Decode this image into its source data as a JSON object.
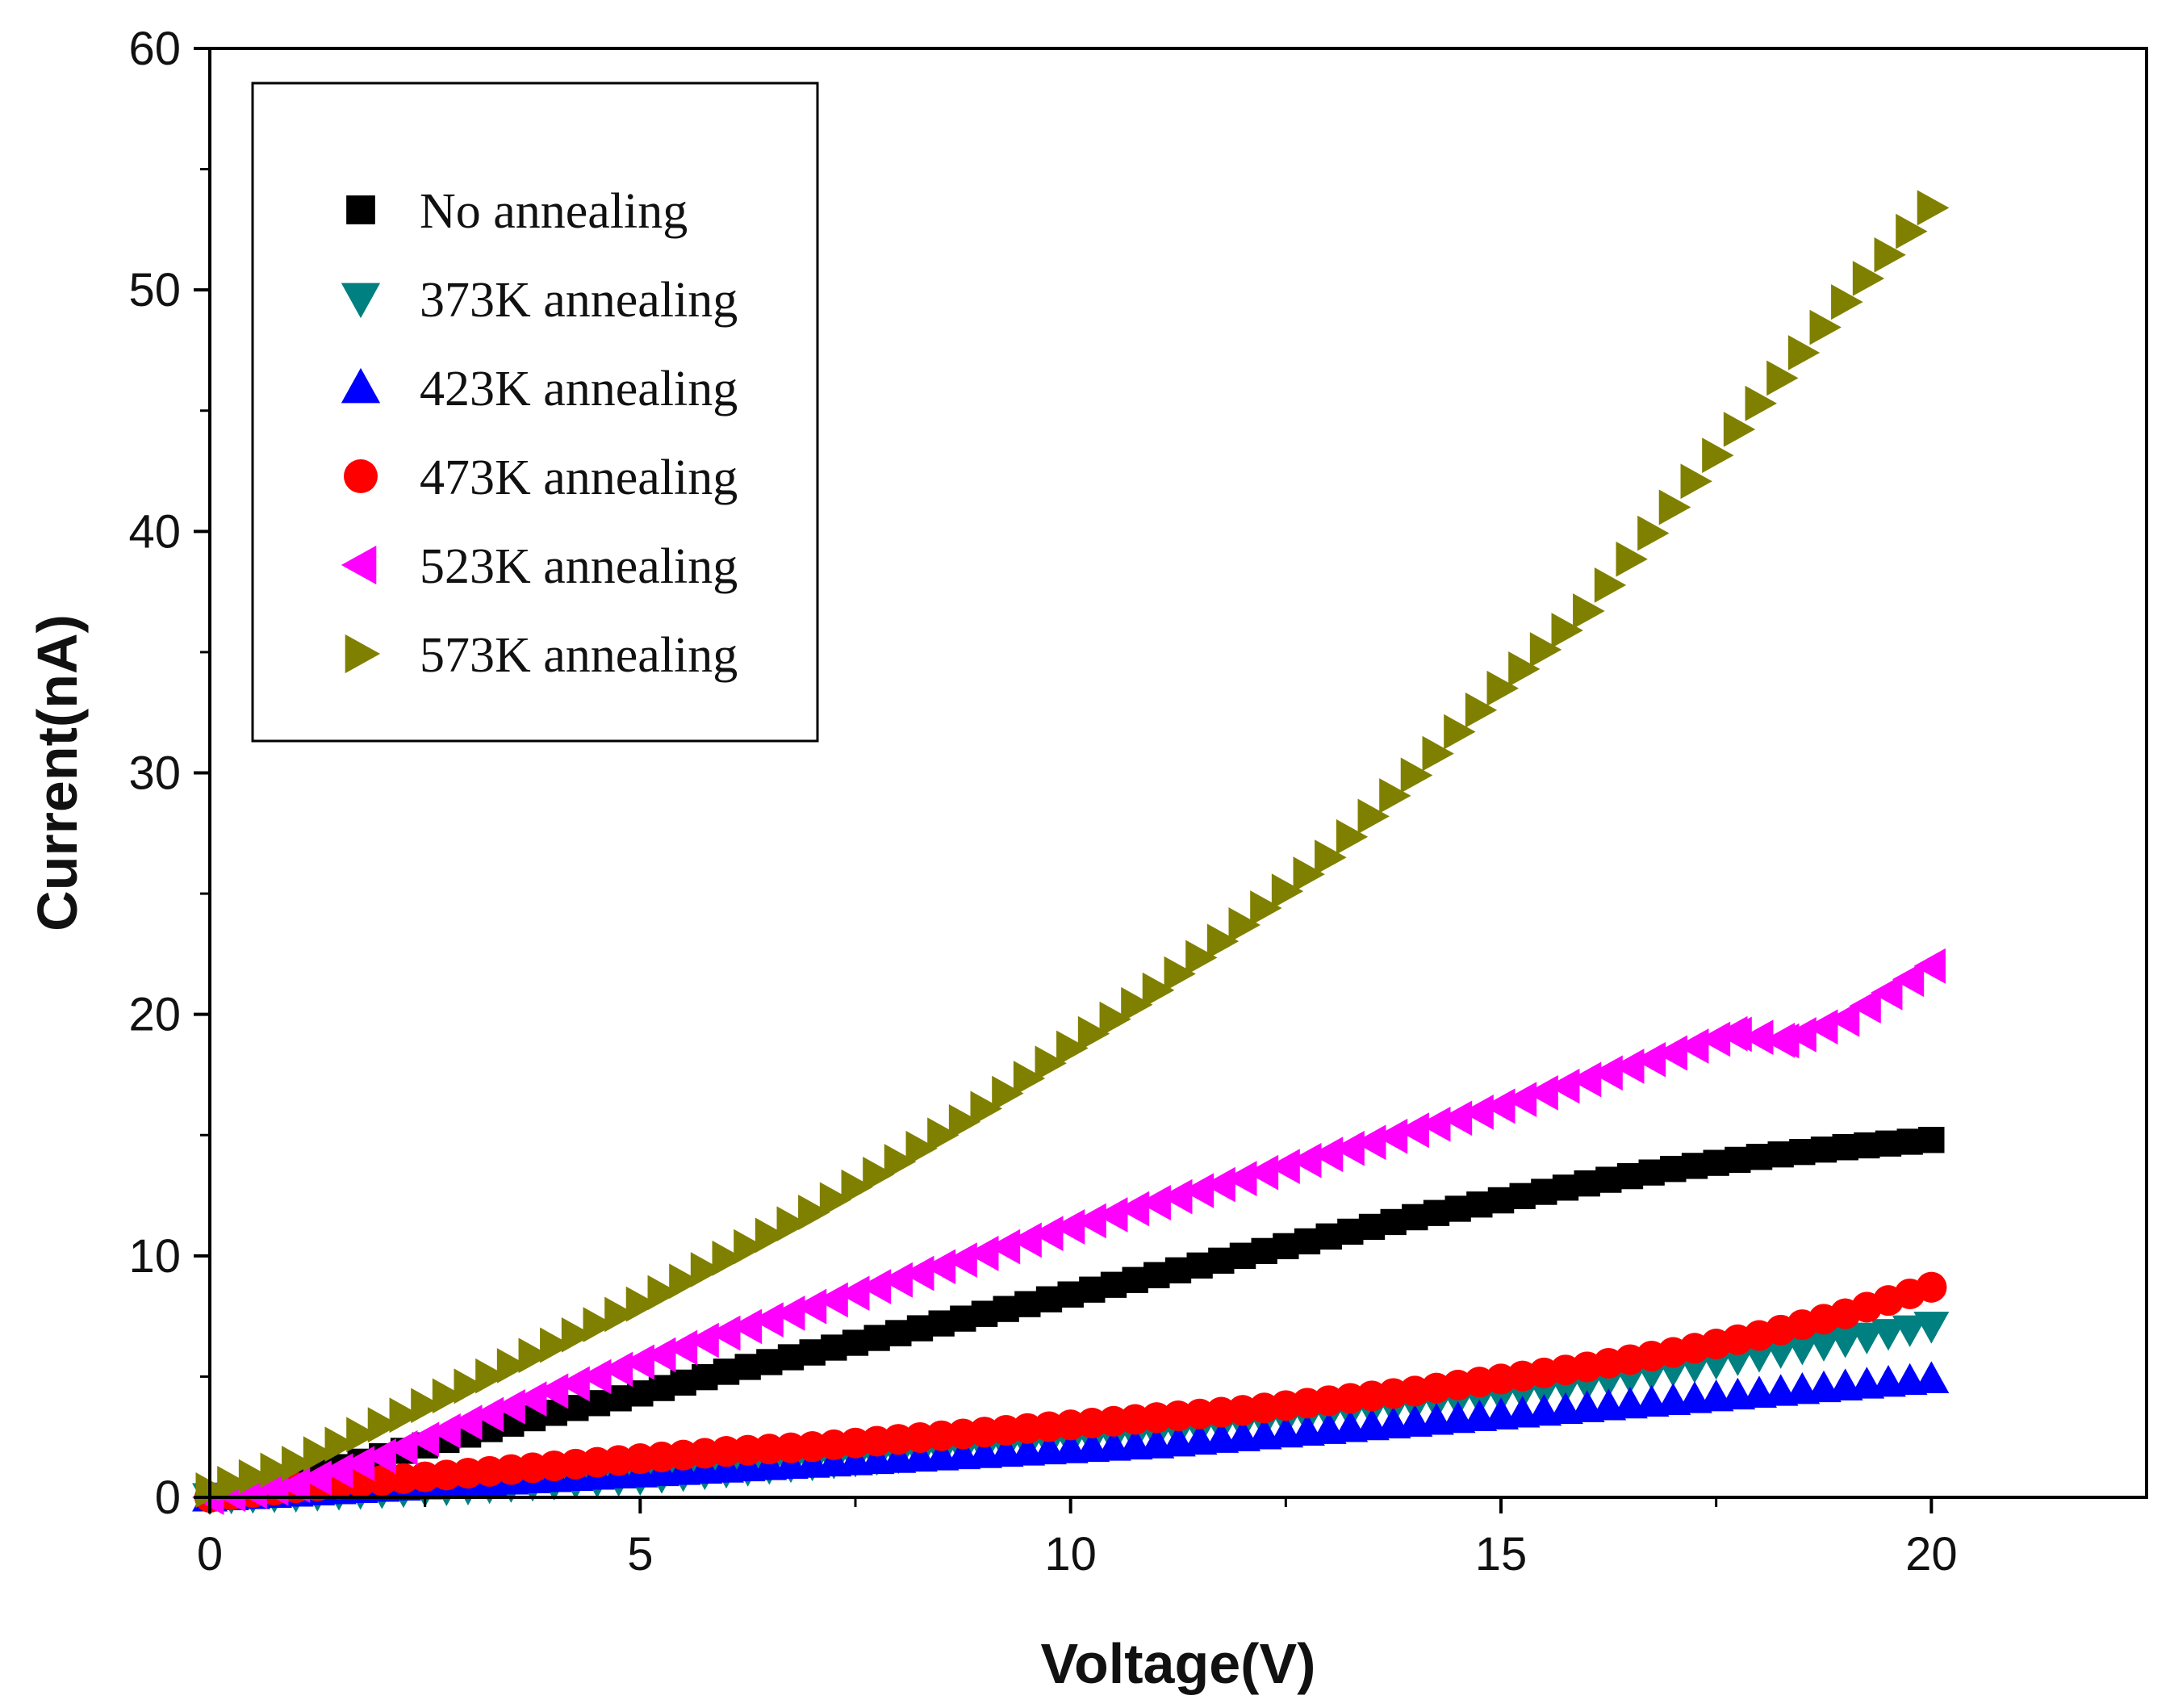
{
  "chart_data": {
    "type": "scatter",
    "title": "",
    "xlabel": "Voltage(V)",
    "ylabel": "Current(nA)",
    "xlim": [
      0,
      22.5
    ],
    "ylim": [
      0,
      60
    ],
    "xticks": [
      0,
      5,
      10,
      15,
      20
    ],
    "yticks": [
      0,
      10,
      20,
      30,
      40,
      50,
      60
    ],
    "legend_position": "top-left",
    "grid": false,
    "series": [
      {
        "name": "No annealing",
        "marker": "square",
        "color": "#000000",
        "x": [
          0,
          1,
          2,
          3,
          4,
          5,
          6,
          7,
          8,
          9,
          10,
          11,
          12,
          13,
          14,
          15,
          16,
          17,
          18,
          19,
          20
        ],
        "y": [
          0,
          0.8,
          1.7,
          2.6,
          3.5,
          4.3,
          5.2,
          6.0,
          6.8,
          7.6,
          8.4,
          9.2,
          10.0,
          10.8,
          11.6,
          12.3,
          13.0,
          13.6,
          14.1,
          14.5,
          14.8
        ]
      },
      {
        "name": "373K annealing",
        "marker": "triangle-down",
        "color": "#008080",
        "x": [
          0,
          1,
          2,
          3,
          4,
          5,
          6,
          7,
          8,
          9,
          10,
          11,
          12,
          13,
          14,
          15,
          16,
          17,
          18,
          19,
          20
        ],
        "y": [
          0,
          0.1,
          0.25,
          0.4,
          0.6,
          0.8,
          1.1,
          1.4,
          1.7,
          2.0,
          2.3,
          2.6,
          3.0,
          3.4,
          3.8,
          4.2,
          4.7,
          5.3,
          5.9,
          6.5,
          7.1
        ]
      },
      {
        "name": "423K annealing",
        "marker": "triangle-up",
        "color": "#0000ff",
        "x": [
          0,
          1,
          2,
          3,
          4,
          5,
          6,
          7,
          8,
          9,
          10,
          11,
          12,
          13,
          14,
          15,
          16,
          17,
          18,
          19,
          20
        ],
        "y": [
          0,
          0.2,
          0.4,
          0.6,
          0.8,
          1.0,
          1.2,
          1.4,
          1.6,
          1.8,
          2.0,
          2.2,
          2.5,
          2.8,
          3.1,
          3.4,
          3.7,
          4.0,
          4.3,
          4.6,
          4.9
        ]
      },
      {
        "name": "473K annealing",
        "marker": "circle",
        "color": "#ff0000",
        "x": [
          0,
          1,
          2,
          3,
          4,
          5,
          6,
          7,
          8,
          9,
          10,
          11,
          12,
          13,
          14,
          15,
          16,
          17,
          18,
          19,
          20
        ],
        "y": [
          0,
          0.4,
          0.7,
          1.0,
          1.3,
          1.6,
          1.9,
          2.1,
          2.4,
          2.7,
          3.0,
          3.3,
          3.6,
          4.0,
          4.4,
          4.9,
          5.4,
          6.0,
          6.7,
          7.6,
          8.7
        ]
      },
      {
        "name": "523K annealing",
        "marker": "triangle-left",
        "color": "#ff00ff",
        "x": [
          0,
          1,
          2,
          3,
          4,
          5,
          6,
          7,
          8,
          9,
          10,
          11,
          12,
          13,
          14,
          15,
          16,
          17,
          17.7,
          18.3,
          19,
          20
        ],
        "y": [
          0,
          0.5,
          1.7,
          3.1,
          4.4,
          5.6,
          6.8,
          7.9,
          9.0,
          10.1,
          11.2,
          12.2,
          13.2,
          14.2,
          15.2,
          16.2,
          17.3,
          18.4,
          19.2,
          18.9,
          19.8,
          22.0
        ]
      },
      {
        "name": "573K annealing",
        "marker": "triangle-right",
        "color": "#808000",
        "x": [
          0,
          1,
          2,
          3,
          4,
          5,
          6,
          7,
          8,
          9,
          10,
          11,
          12,
          13,
          14,
          15,
          16,
          17,
          18,
          19,
          20
        ],
        "y": [
          0.3,
          1.4,
          3.0,
          4.6,
          6.3,
          8.0,
          9.9,
          11.8,
          13.9,
          16.1,
          18.6,
          21.0,
          23.7,
          26.5,
          29.9,
          33.5,
          36.7,
          41.0,
          45.3,
          49.5,
          53.4
        ]
      }
    ]
  }
}
